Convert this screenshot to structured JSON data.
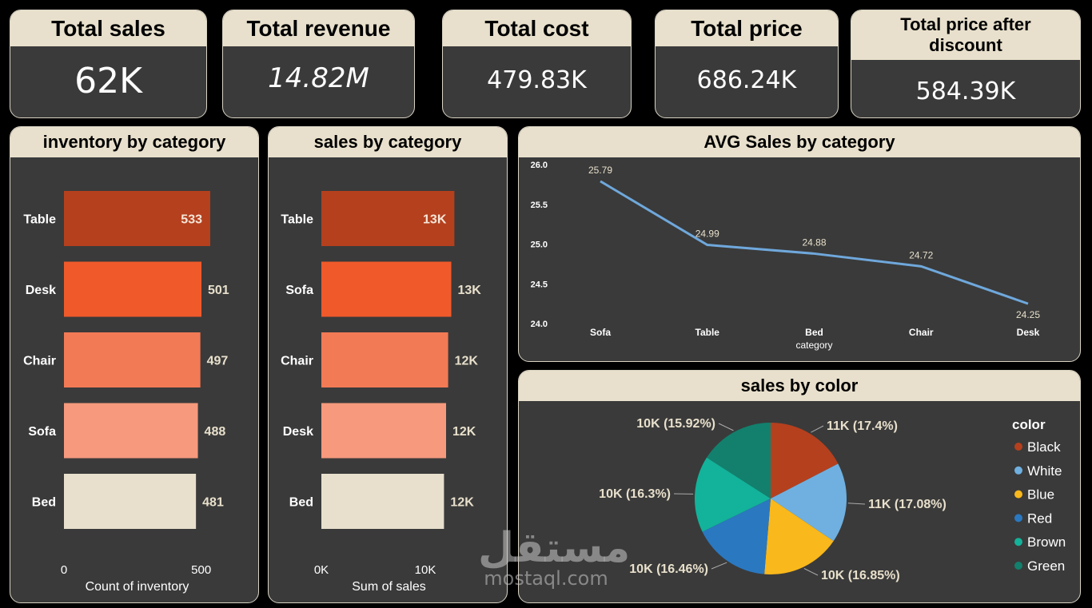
{
  "kpis": [
    {
      "title": "Total sales",
      "value": "62K"
    },
    {
      "title": "Total revenue",
      "value": "14.82M"
    },
    {
      "title": "Total cost",
      "value": "479.83K"
    },
    {
      "title": "Total price",
      "value": "686.24K"
    },
    {
      "title": "Total price after discount",
      "value": "584.39K"
    }
  ],
  "watermark": {
    "arabic": "مستقل",
    "latin": "mostaql.com"
  },
  "chart_data": [
    {
      "type": "bar",
      "orientation": "horizontal",
      "title": "inventory by category",
      "categories": [
        "Table",
        "Desk",
        "Chair",
        "Sofa",
        "Bed"
      ],
      "values": [
        533,
        501,
        497,
        488,
        481
      ],
      "labels": [
        "533",
        "501",
        "497",
        "488",
        "481"
      ],
      "colors": [
        "#b5401e",
        "#f05a2a",
        "#f27a55",
        "#f6997c",
        "#e8e0cc"
      ],
      "xlabel": "Count of inventory",
      "xticks": [
        0,
        500
      ],
      "xtick_labels": [
        "0",
        "500"
      ],
      "xlim": [
        0,
        533
      ]
    },
    {
      "type": "bar",
      "orientation": "horizontal",
      "title": "sales by category",
      "categories": [
        "Table",
        "Sofa",
        "Chair",
        "Desk",
        "Bed"
      ],
      "values": [
        12800,
        12500,
        12200,
        12000,
        11800
      ],
      "labels": [
        "13K",
        "13K",
        "12K",
        "12K",
        "12K"
      ],
      "colors": [
        "#b5401e",
        "#f05a2a",
        "#f27a55",
        "#f6997c",
        "#e8e0cc"
      ],
      "xlabel": "Sum of sales",
      "xticks": [
        0,
        10000
      ],
      "xtick_labels": [
        "0K",
        "10K"
      ],
      "xlim": [
        0,
        13000
      ]
    },
    {
      "type": "line",
      "title": "AVG Sales by category",
      "categories": [
        "Sofa",
        "Table",
        "Bed",
        "Chair",
        "Desk"
      ],
      "values": [
        25.79,
        24.99,
        24.88,
        24.72,
        24.25
      ],
      "labels": [
        "25.79",
        "24.99",
        "24.88",
        "24.72",
        "24.25"
      ],
      "xlabel": "category",
      "ylim": [
        24.0,
        26.0
      ],
      "yticks": [
        24.0,
        24.5,
        25.0,
        25.5,
        26.0
      ],
      "ytick_labels": [
        "24.0",
        "24.5",
        "25.0",
        "25.5",
        "26.0"
      ],
      "color": "#6fa8dc"
    },
    {
      "type": "pie",
      "title": "sales by color",
      "legend_title": "color",
      "legend_position": "right",
      "categories": [
        "Black",
        "White",
        "Blue",
        "Red",
        "Brown",
        "Green"
      ],
      "values": [
        17.4,
        17.08,
        16.85,
        16.46,
        16.3,
        15.92
      ],
      "labels": [
        "11K (17.4%)",
        "11K (17.08%)",
        "10K (16.85%)",
        "10K (16.46%)",
        "10K (16.3%)",
        "10K (15.92%)"
      ],
      "colors": [
        "#b5401e",
        "#6fb0e0",
        "#f9b81b",
        "#2a78c0",
        "#13b29a",
        "#12806d"
      ]
    }
  ]
}
